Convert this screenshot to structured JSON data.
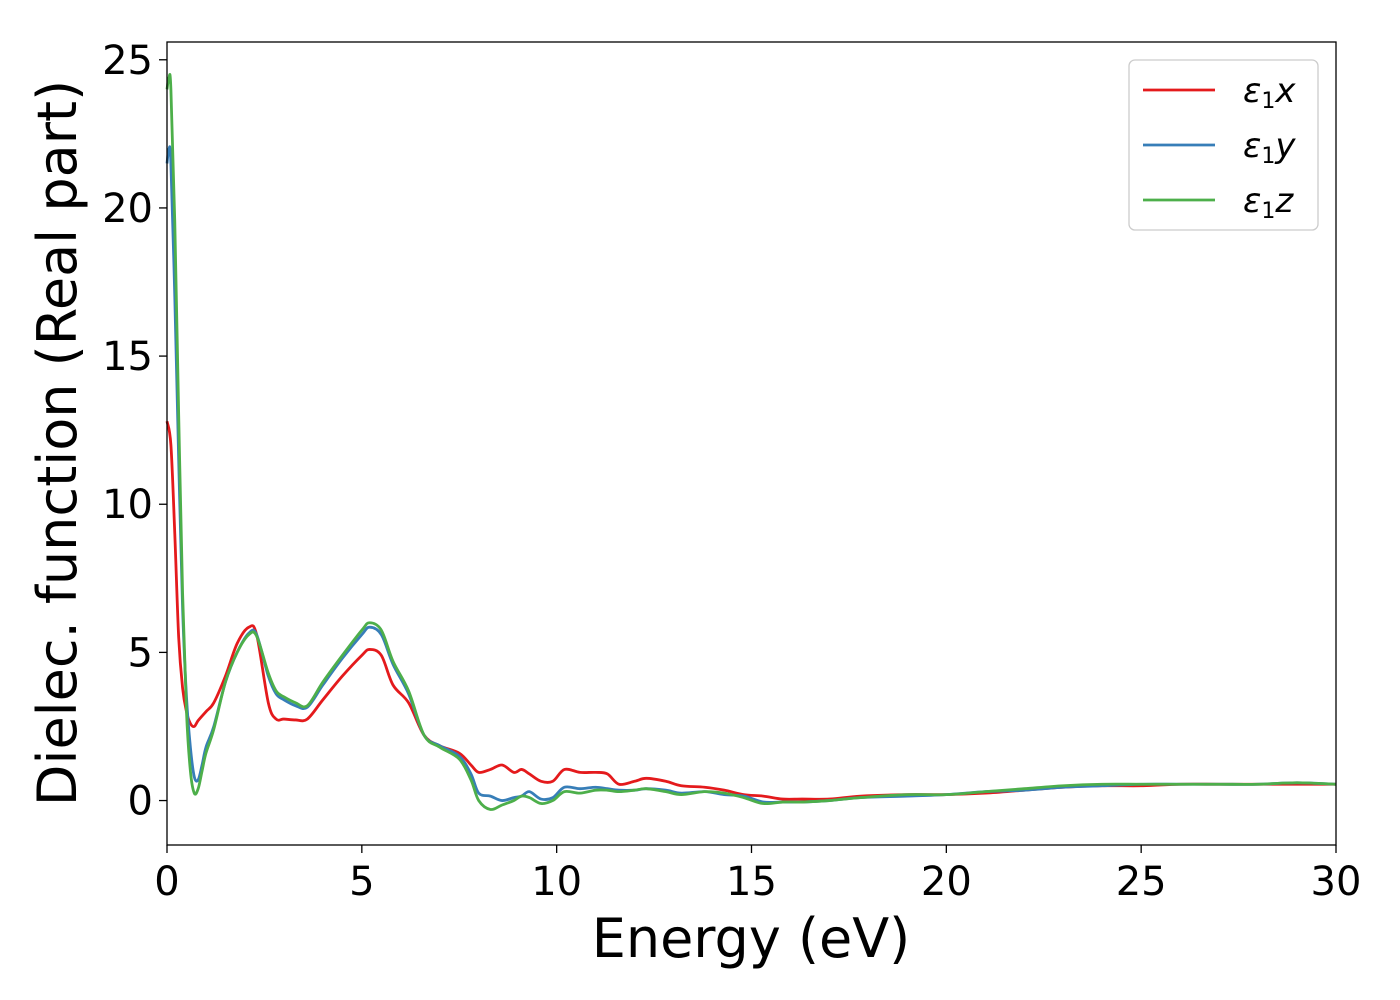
{
  "chart_data": {
    "type": "line",
    "title": "",
    "xlabel": "Energy (eV)",
    "ylabel": "Dielec. function (Real part)",
    "xlim": [
      0,
      30
    ],
    "ylim": [
      -1.5,
      25.6
    ],
    "xticks": [
      0,
      5,
      10,
      15,
      20,
      25,
      30
    ],
    "yticks": [
      0,
      5,
      10,
      15,
      20,
      25
    ],
    "grid": false,
    "legend_position": "top-right",
    "series": [
      {
        "name": "ε1x",
        "legend_base": "ε",
        "legend_sub": "1",
        "legend_var": "x",
        "color": "#e41a1c",
        "x": [
          0,
          0.1,
          0.2,
          0.3,
          0.4,
          0.5,
          0.6,
          0.7,
          0.8,
          1.0,
          1.2,
          1.5,
          1.8,
          2.1,
          2.3,
          2.6,
          2.8,
          3.0,
          3.3,
          3.6,
          4.0,
          4.5,
          5.0,
          5.2,
          5.5,
          5.8,
          6.2,
          6.6,
          7.0,
          7.5,
          7.8,
          8.0,
          8.3,
          8.6,
          8.9,
          9.1,
          9.3,
          9.6,
          9.9,
          10.2,
          10.6,
          11.0,
          11.3,
          11.6,
          12.0,
          12.3,
          12.8,
          13.2,
          13.8,
          14.3,
          14.8,
          15.3,
          15.8,
          16.3,
          17.0,
          17.8,
          19.0,
          20.0,
          21.0,
          22.0,
          23.0,
          24.0,
          25.0,
          26.0,
          27.0,
          28.0,
          29.0,
          30.0
        ],
        "values": [
          12.8,
          12.0,
          9.0,
          5.5,
          3.8,
          3.0,
          2.6,
          2.5,
          2.7,
          3.0,
          3.3,
          4.2,
          5.3,
          5.85,
          5.6,
          3.3,
          2.75,
          2.75,
          2.72,
          2.75,
          3.4,
          4.2,
          4.9,
          5.1,
          4.9,
          3.9,
          3.3,
          2.2,
          1.85,
          1.6,
          1.2,
          0.95,
          1.05,
          1.2,
          0.95,
          1.05,
          0.9,
          0.65,
          0.65,
          1.05,
          0.95,
          0.95,
          0.9,
          0.55,
          0.65,
          0.75,
          0.65,
          0.5,
          0.45,
          0.35,
          0.2,
          0.15,
          0.05,
          0.05,
          0.05,
          0.15,
          0.2,
          0.2,
          0.25,
          0.35,
          0.45,
          0.5,
          0.5,
          0.55,
          0.55,
          0.55,
          0.55,
          0.55
        ]
      },
      {
        "name": "ε1y",
        "legend_base": "ε",
        "legend_sub": "1",
        "legend_var": "y",
        "color": "#377eb8",
        "x": [
          0,
          0.05,
          0.1,
          0.2,
          0.3,
          0.4,
          0.5,
          0.6,
          0.7,
          0.8,
          0.9,
          1.0,
          1.2,
          1.5,
          1.8,
          2.1,
          2.3,
          2.6,
          2.8,
          3.0,
          3.3,
          3.6,
          4.0,
          4.5,
          5.0,
          5.2,
          5.5,
          5.8,
          6.2,
          6.6,
          7.0,
          7.5,
          7.8,
          8.0,
          8.3,
          8.6,
          8.9,
          9.1,
          9.3,
          9.6,
          9.9,
          10.2,
          10.6,
          11.0,
          11.3,
          11.6,
          12.0,
          12.3,
          12.8,
          13.2,
          13.8,
          14.3,
          14.8,
          15.3,
          15.8,
          16.3,
          17.0,
          17.8,
          19.0,
          20.0,
          21.0,
          22.0,
          23.0,
          24.0,
          25.0,
          26.0,
          27.0,
          28.0,
          29.0,
          30.0
        ],
        "values": [
          21.5,
          22.0,
          21.5,
          17.0,
          11.5,
          6.5,
          3.5,
          1.8,
          0.8,
          0.7,
          1.2,
          1.8,
          2.5,
          4.0,
          5.0,
          5.65,
          5.6,
          4.2,
          3.6,
          3.4,
          3.2,
          3.15,
          3.9,
          4.8,
          5.6,
          5.85,
          5.6,
          4.6,
          3.6,
          2.2,
          1.85,
          1.5,
          0.9,
          0.25,
          0.15,
          0.0,
          0.1,
          0.15,
          0.3,
          0.05,
          0.1,
          0.45,
          0.4,
          0.45,
          0.4,
          0.35,
          0.35,
          0.4,
          0.35,
          0.25,
          0.3,
          0.2,
          0.15,
          -0.05,
          -0.05,
          -0.05,
          0.0,
          0.1,
          0.15,
          0.2,
          0.3,
          0.35,
          0.45,
          0.5,
          0.55,
          0.55,
          0.55,
          0.55,
          0.6,
          0.55
        ]
      },
      {
        "name": "ε1z",
        "legend_base": "ε",
        "legend_sub": "1",
        "legend_var": "z",
        "color": "#4daf4a",
        "x": [
          0,
          0.05,
          0.1,
          0.2,
          0.3,
          0.4,
          0.5,
          0.6,
          0.7,
          0.8,
          0.9,
          1.0,
          1.2,
          1.5,
          1.8,
          2.1,
          2.3,
          2.6,
          2.8,
          3.0,
          3.3,
          3.6,
          4.0,
          4.5,
          5.0,
          5.2,
          5.5,
          5.8,
          6.2,
          6.6,
          7.0,
          7.5,
          7.8,
          8.0,
          8.3,
          8.6,
          8.9,
          9.1,
          9.3,
          9.6,
          9.9,
          10.2,
          10.6,
          11.0,
          11.3,
          11.6,
          12.0,
          12.3,
          12.8,
          13.2,
          13.8,
          14.3,
          14.8,
          15.3,
          15.8,
          16.3,
          17.0,
          17.8,
          19.0,
          20.0,
          21.0,
          22.0,
          23.0,
          24.0,
          25.0,
          26.0,
          27.0,
          28.0,
          29.0,
          30.0
        ],
        "values": [
          24.0,
          24.4,
          24.0,
          19.5,
          13.0,
          7.0,
          3.0,
          1.0,
          0.25,
          0.4,
          1.0,
          1.6,
          2.4,
          4.0,
          5.0,
          5.6,
          5.55,
          4.3,
          3.7,
          3.5,
          3.3,
          3.2,
          4.0,
          4.9,
          5.75,
          6.0,
          5.75,
          4.7,
          3.7,
          2.2,
          1.8,
          1.4,
          0.7,
          0.0,
          -0.3,
          -0.15,
          0.0,
          0.15,
          0.1,
          -0.1,
          0.0,
          0.3,
          0.25,
          0.35,
          0.35,
          0.3,
          0.35,
          0.4,
          0.3,
          0.2,
          0.3,
          0.25,
          0.1,
          -0.1,
          -0.05,
          -0.05,
          0.0,
          0.1,
          0.2,
          0.2,
          0.3,
          0.4,
          0.5,
          0.55,
          0.55,
          0.55,
          0.55,
          0.55,
          0.6,
          0.55
        ]
      }
    ]
  }
}
